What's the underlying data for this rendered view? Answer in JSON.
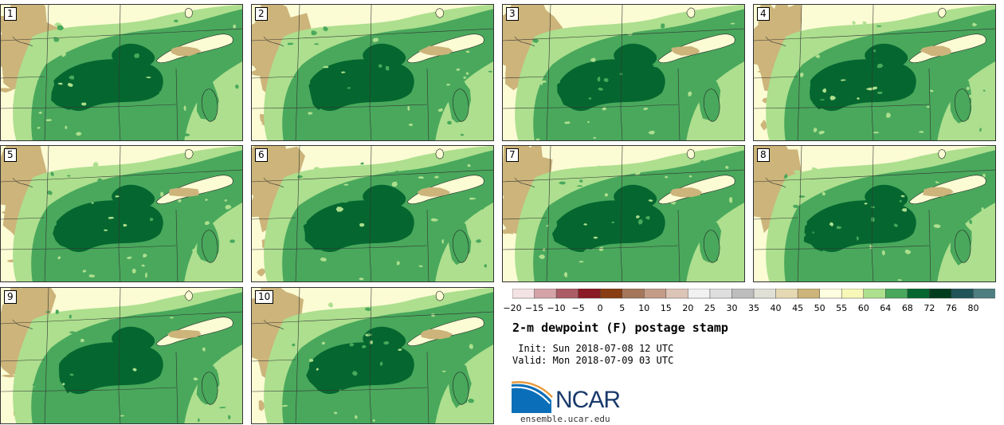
{
  "panels": [
    {
      "label": "1"
    },
    {
      "label": "2"
    },
    {
      "label": "3"
    },
    {
      "label": "4"
    },
    {
      "label": "5"
    },
    {
      "label": "6"
    },
    {
      "label": "7"
    },
    {
      "label": "8"
    },
    {
      "label": "9"
    },
    {
      "label": "10"
    }
  ],
  "colorbar": {
    "ticks": [
      "−20",
      "−15",
      "−10",
      "−5",
      "0",
      "5",
      "10",
      "15",
      "20",
      "25",
      "30",
      "35",
      "40",
      "45",
      "50",
      "55",
      "60",
      "64",
      "68",
      "72",
      "76",
      "80"
    ],
    "colors": [
      "#f4e3e5",
      "#d4a3a8",
      "#ab5c64",
      "#8a1a24",
      "#883d12",
      "#a5775a",
      "#c39b86",
      "#dcc4b7",
      "#f1f1f1",
      "#dedede",
      "#bdbdbd",
      "#e1e0d6",
      "#e5d9b3",
      "#ccb47a",
      "#fdfde0",
      "#f7f8b8",
      "#addf8e",
      "#49a85c",
      "#05672f",
      "#003d1e",
      "#21555a",
      "#4f7e80"
    ]
  },
  "title": "2-m dewpoint (F) postage stamp",
  "init": " Init: Sun 2018-07-08 12 UTC",
  "valid": "Valid: Mon 2018-07-09 03 UTC",
  "logo": {
    "name": "NCAR",
    "url": "ensemble.ucar.edu"
  }
}
